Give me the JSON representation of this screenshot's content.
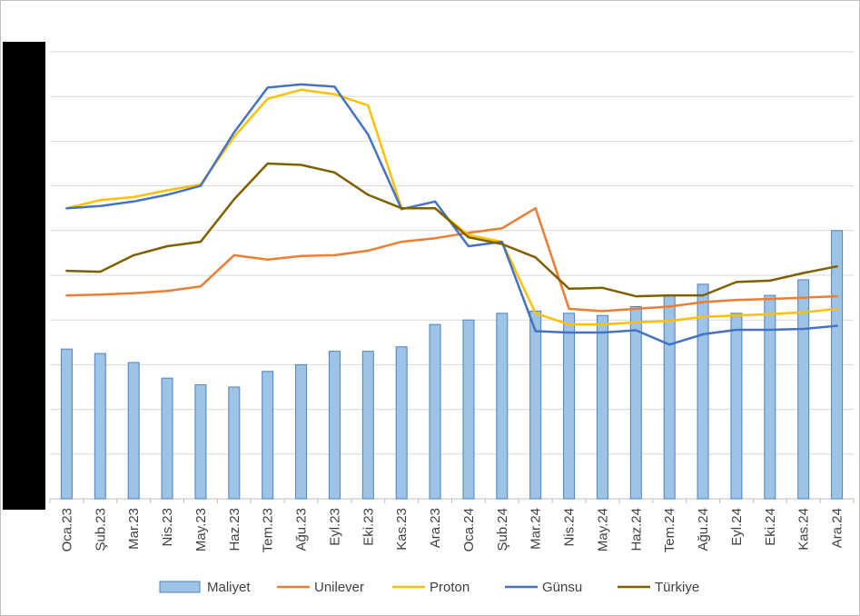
{
  "chart_data": {
    "type": "bar+line",
    "title": "",
    "xlabel": "",
    "ylabel": "",
    "ylim": [
      0,
      100
    ],
    "grid": true,
    "legend_position": "bottom",
    "categories": [
      "Oca.23",
      "Şub.23",
      "Mar.23",
      "Nis.23",
      "May.23",
      "Haz.23",
      "Tem.23",
      "Ağu.23",
      "Eyl.23",
      "Eki.23",
      "Kas.23",
      "Ara.23",
      "Oca.24",
      "Şub.24",
      "Mar.24",
      "Nis.24",
      "May.24",
      "Haz.24",
      "Tem.24",
      "Ağu.24",
      "Eyl.24",
      "Eki.24",
      "Kas.24",
      "Ara.24"
    ],
    "series": [
      {
        "name": "Maliyet",
        "kind": "bar",
        "color": "#9dc3e6",
        "values": [
          33.5,
          32.5,
          30.5,
          27,
          25.5,
          25,
          28.5,
          30,
          33,
          33,
          34,
          39,
          40,
          41.5,
          42,
          41.5,
          41,
          43,
          45.5,
          48,
          41.5,
          45.5,
          49,
          60
        ]
      },
      {
        "name": "Unilever",
        "kind": "line",
        "color": "#ed7d31",
        "values": [
          45.5,
          45.7,
          46,
          46.5,
          47.5,
          54.5,
          53.5,
          54.3,
          54.5,
          55.5,
          57.5,
          58.3,
          59.5,
          60.5,
          65,
          42.5,
          42,
          42.5,
          43,
          44,
          44.5,
          44.7,
          45,
          45.3
        ]
      },
      {
        "name": "Proton",
        "kind": "line",
        "color": "#ffc000",
        "values": [
          65,
          66.8,
          67.5,
          69,
          70.3,
          81,
          89.5,
          91.5,
          90.5,
          88,
          65,
          65,
          59,
          57.5,
          41.5,
          39,
          39,
          39.5,
          39.8,
          40.7,
          41,
          41.3,
          41.7,
          42.5
        ]
      },
      {
        "name": "Günsu",
        "kind": "line",
        "color": "#4472c4",
        "values": [
          65,
          65.5,
          66.5,
          68,
          70,
          82,
          92,
          92.7,
          92.2,
          81.5,
          64.8,
          66.5,
          56.5,
          57.5,
          37.5,
          37.2,
          37.2,
          37.7,
          34.5,
          36.8,
          37.8,
          37.8,
          38,
          38.7
        ]
      },
      {
        "name": "Türkiye",
        "kind": "line",
        "color": "#7f6000",
        "values": [
          51,
          50.8,
          54.5,
          56.5,
          57.5,
          67,
          75,
          74.7,
          73,
          68,
          65,
          65,
          58.5,
          57,
          54,
          47,
          47.2,
          45.3,
          45.5,
          45.5,
          48.5,
          48.8,
          50.5,
          52
        ]
      }
    ]
  }
}
